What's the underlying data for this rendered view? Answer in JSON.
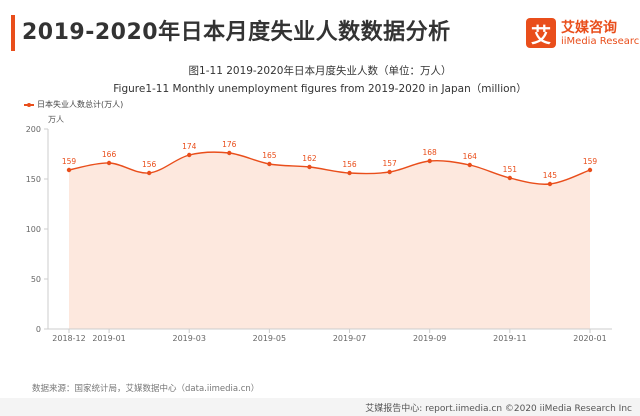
{
  "page": {
    "title": "2019-2020年日本月度失业人数数据分析",
    "subtitle_cn": "图1-11 2019-2020年日本月度失业人数（单位：万人）",
    "subtitle_en": "Figure1-11 Monthly unemployment figures from 2019-2020 in Japan（million）",
    "source": "数据来源：国家统计局，艾媒数据中心（data.iimedia.cn）",
    "footer": "艾媒报告中心: report.iimedia.cn ©2020  iiMedia Research Inc"
  },
  "brand": {
    "logo_char": "艾",
    "name_cn": "艾媒咨询",
    "name_en": "iiMedia Research",
    "color": "#e94e1b"
  },
  "chart_data": {
    "type": "area",
    "x": [
      "2018-12",
      "2019-01",
      "2019-02",
      "2019-03",
      "2019-04",
      "2019-05",
      "2019-06",
      "2019-07",
      "2019-08",
      "2019-09",
      "2019-10",
      "2019-11",
      "2019-12",
      "2020-01"
    ],
    "x_tick_labels": [
      "2018-12",
      "2019-01",
      "2019-03",
      "2019-05",
      "2019-07",
      "2019-09",
      "2019-11",
      "2020-01"
    ],
    "series": [
      {
        "name": "日本失业人数总计(万人)",
        "values": [
          159,
          166,
          156,
          174,
          176,
          165,
          162,
          156,
          157,
          168,
          164,
          151,
          145,
          159
        ],
        "color": "#e94e1b",
        "fill": "#fde8de"
      }
    ],
    "ylabel": "万人",
    "ylim": [
      0,
      200
    ],
    "yticks": [
      0,
      50,
      100,
      150,
      200
    ],
    "grid": false,
    "legend": "top-left",
    "data_labels": true,
    "smooth": true
  }
}
